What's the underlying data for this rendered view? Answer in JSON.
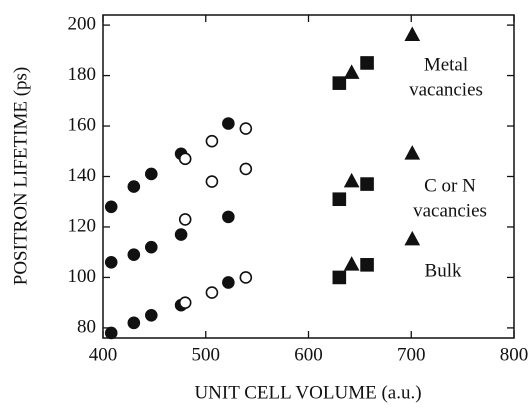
{
  "chart_data": {
    "type": "scatter",
    "xlabel": "UNIT CELL VOLUME (a.u.)",
    "ylabel": "POSITRON LIFETIME (ps)",
    "xlim": [
      400,
      800
    ],
    "xticks": [
      400,
      500,
      600,
      700,
      800
    ],
    "ylim": [
      76,
      204
    ],
    "yticks": [
      80,
      100,
      120,
      140,
      160,
      180,
      200
    ],
    "series": [
      {
        "color": "#111111",
        "marker": "circle",
        "filled": true,
        "x": [
          408,
          430,
          447,
          476,
          522,
          408,
          430,
          447,
          476,
          522,
          408,
          430,
          447,
          476,
          522
        ],
        "values": [
          128,
          136,
          141,
          149,
          161,
          106,
          109,
          112,
          117,
          124,
          78,
          82,
          85,
          89,
          98
        ]
      },
      {
        "color": "#111111",
        "marker": "circle",
        "filled": false,
        "x": [
          480,
          506,
          539,
          480,
          506,
          539,
          480,
          506,
          539
        ],
        "values": [
          147,
          154,
          159,
          123,
          138,
          143,
          90,
          94,
          100
        ]
      },
      {
        "color": "#111111",
        "marker": "square",
        "filled": true,
        "x": [
          630,
          657,
          630,
          657,
          630,
          657
        ],
        "values": [
          177,
          185,
          131,
          137,
          100,
          105
        ]
      },
      {
        "color": "#111111",
        "marker": "triangle",
        "filled": true,
        "x": [
          642,
          701,
          642,
          701,
          642,
          701
        ],
        "values": [
          181,
          196,
          138,
          149,
          105,
          115
        ]
      }
    ],
    "annotations": [
      {
        "lines": [
          "Metal",
          "vacancies"
        ]
      },
      {
        "lines": [
          "C or N",
          "vacancies"
        ]
      },
      {
        "lines": [
          "Bulk"
        ]
      }
    ]
  }
}
